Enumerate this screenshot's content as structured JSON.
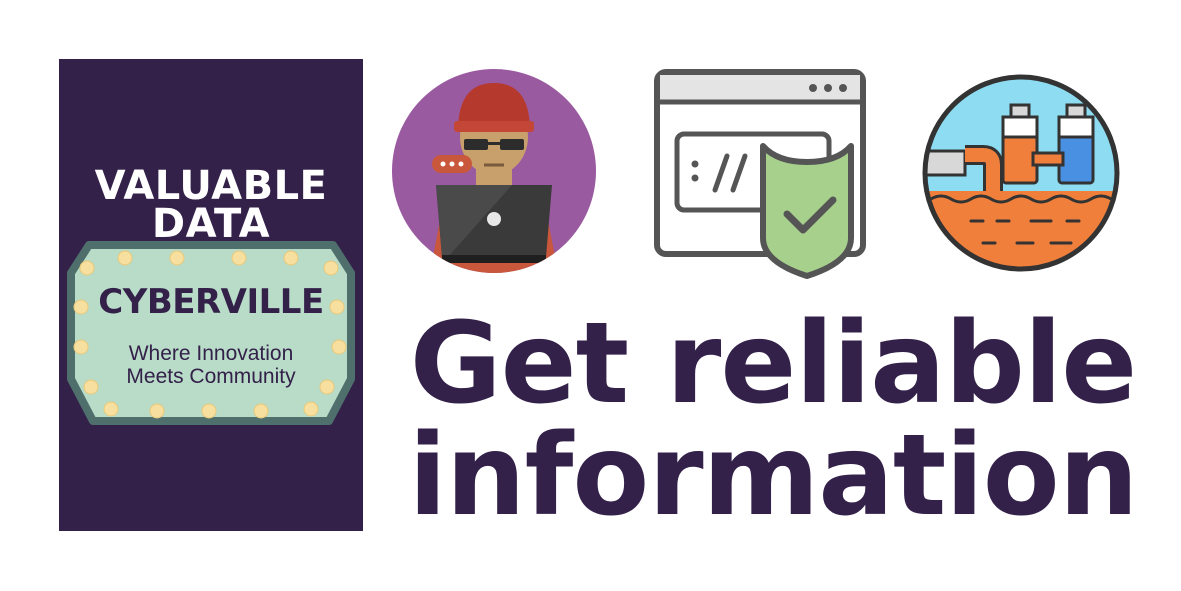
{
  "poster": {
    "heading_line1": "VALUABLE",
    "heading_line2": "DATA",
    "sign_title": "CYBERVILLE",
    "sign_sub_line1": "Where Innovation",
    "sign_sub_line2": "Meets Community"
  },
  "icons": {
    "hacker": "hacker-laptop-icon",
    "browser": "browser-shield-check-icon",
    "pipeline": "data-pipeline-icon"
  },
  "headline": {
    "line1": "Get reliable",
    "line2": "information"
  },
  "colors": {
    "brand_purple": "#33214a",
    "sign_fill": "#b9dcc8",
    "sign_border": "#4f6f6c",
    "bulb": "#f7dfa0",
    "hacker_bg": "#9a5aa0",
    "shield": "#a8d08d",
    "water": "#8edcf2",
    "soil": "#f07f3c"
  }
}
